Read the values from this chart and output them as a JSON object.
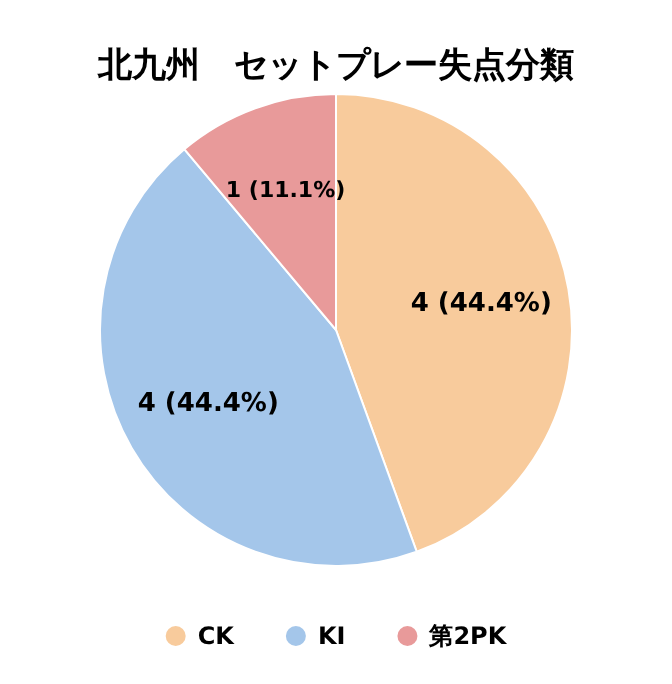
{
  "chart_data": {
    "type": "pie",
    "title": "北九州　セットプレー失点分類",
    "categories": [
      "CK",
      "KI",
      "第2PK"
    ],
    "values": [
      4,
      4,
      1
    ],
    "colors": [
      "#f8cb9c",
      "#a4c6ea",
      "#e89a9a"
    ],
    "value_labels": [
      "4 (44.4%)",
      "4 (44.4%)",
      "1 (11.1%)"
    ],
    "legend": "bottom"
  }
}
